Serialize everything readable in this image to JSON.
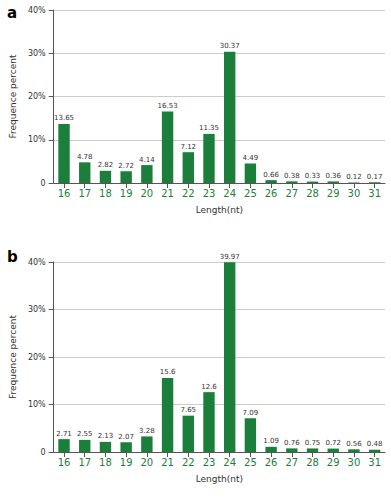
{
  "chart_data": [
    {
      "type": "bar",
      "title": "a",
      "x_label": "Length(nt)",
      "y_label": "Frequence percent",
      "categories": [
        "16",
        "17",
        "18",
        "19",
        "20",
        "21",
        "22",
        "23",
        "24",
        "25",
        "26",
        "27",
        "28",
        "29",
        "30",
        "31"
      ],
      "values": [
        13.65,
        4.78,
        2.82,
        2.72,
        4.14,
        16.53,
        7.12,
        11.35,
        30.37,
        4.49,
        0.66,
        0.38,
        0.33,
        0.36,
        0.12,
        0.17
      ],
      "color": "#1b7f3b",
      "ylim": [
        0,
        40
      ],
      "yticks": [
        0,
        {
          "value": 10,
          "label": "10%"
        },
        {
          "value": 20,
          "label": "20%"
        },
        {
          "value": 30,
          "label": "30%"
        },
        {
          "value": 40,
          "label": "40%"
        }
      ],
      "grid": true,
      "data_labels": true
    },
    {
      "type": "bar",
      "title": "b",
      "x_label": "Length(nt)",
      "y_label": "Frequence percent",
      "categories": [
        "16",
        "17",
        "18",
        "19",
        "20",
        "21",
        "22",
        "23",
        "24",
        "25",
        "26",
        "27",
        "28",
        "29",
        "30",
        "31"
      ],
      "values": [
        2.71,
        2.55,
        2.13,
        2.07,
        3.28,
        15.6,
        7.65,
        12.6,
        39.97,
        7.09,
        1.09,
        0.76,
        0.75,
        0.72,
        0.56,
        0.48
      ],
      "color": "#1b7f3b",
      "ylim": [
        0,
        40
      ],
      "yticks": [
        0,
        {
          "value": 10,
          "label": "10%"
        },
        {
          "value": 20,
          "label": "20%"
        },
        {
          "value": 30,
          "label": "30%"
        },
        {
          "value": 40,
          "label": "40%"
        }
      ],
      "grid": true,
      "data_labels": true
    }
  ]
}
